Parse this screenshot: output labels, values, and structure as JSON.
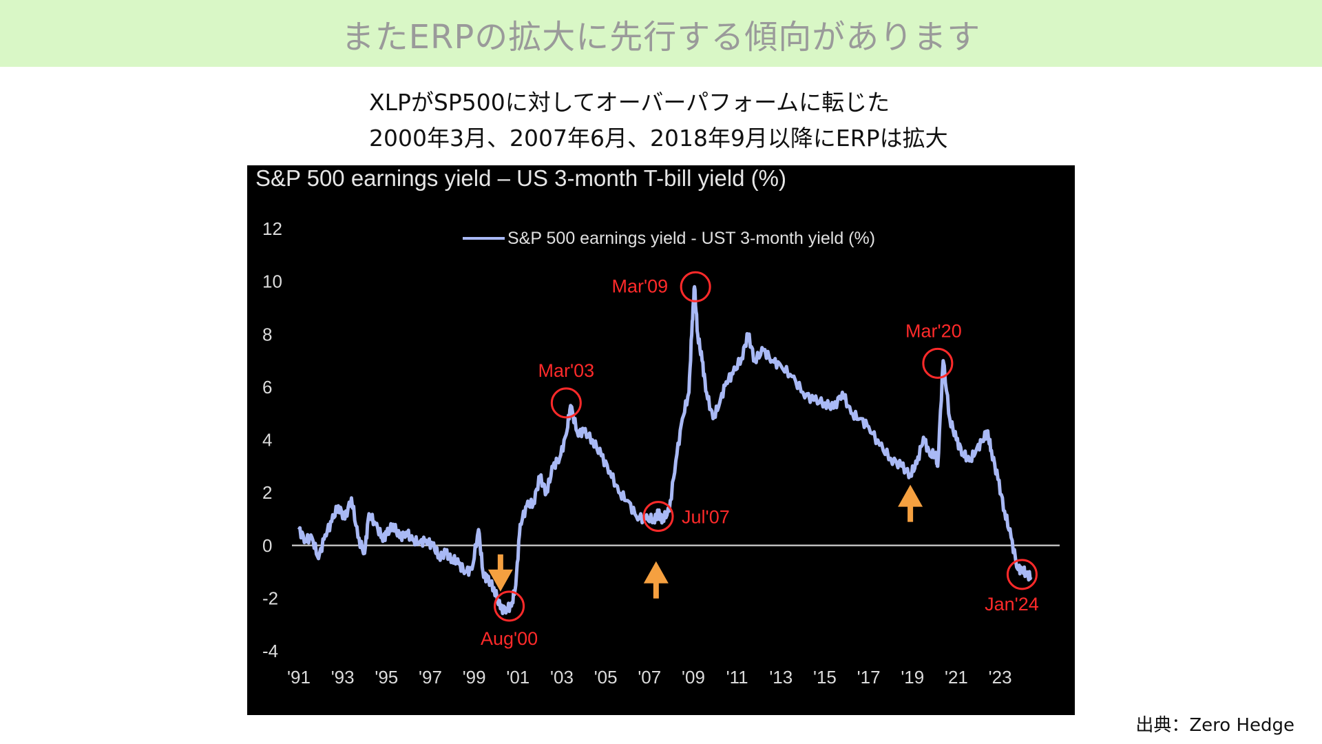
{
  "header": {
    "title": "またERPの拡大に先行する傾向があります"
  },
  "subtitle": {
    "line1": "XLPがSP500に対してオーバーパフォームに転じた",
    "line2": "2000年3月、2007年6月、2018年9月以降にERPは拡大"
  },
  "source": "出典：Zero Hedge",
  "colors": {
    "banner_bg": "#d9f7c6",
    "line": "#a9b9f5",
    "annotation": "#ff2a2a",
    "arrow": "#f5a040",
    "zero_line": "#bdbdbd"
  },
  "chart_data": {
    "type": "line",
    "title": "S&P 500 earnings yield – US 3-month T-bill yield (%)",
    "legend": "S&P 500 earnings yield - UST 3-month yield (%)",
    "legend_position": "top-center",
    "xlabel": "",
    "ylabel": "",
    "xlim": [
      1991,
      2025.4
    ],
    "ylim": [
      -4,
      12
    ],
    "yticks": [
      -4,
      -2,
      0,
      2,
      4,
      6,
      8,
      10,
      12
    ],
    "xtick_values": [
      1991,
      1993,
      1995,
      1997,
      1999,
      2001,
      2003,
      2005,
      2007,
      2009,
      2011,
      2013,
      2015,
      2017,
      2019,
      2021,
      2023
    ],
    "xtick_labels": [
      "'91",
      "'93",
      "'95",
      "'97",
      "'99",
      "'01",
      "'03",
      "'05",
      "'07",
      "'09",
      "'11",
      "'13",
      "'15",
      "'17",
      "'19",
      "'21",
      "'23"
    ],
    "grid": false,
    "zero_line": true,
    "series": [
      {
        "name": "S&P 500 earnings yield - UST 3-month yield (%)",
        "x": [
          1991.0,
          1991.3,
          1991.6,
          1991.9,
          1992.2,
          1992.5,
          1992.8,
          1993.1,
          1993.4,
          1993.7,
          1994.0,
          1994.2,
          1994.5,
          1994.8,
          1995.0,
          1995.3,
          1995.6,
          1995.9,
          1996.2,
          1996.5,
          1996.8,
          1997.1,
          1997.4,
          1997.7,
          1998.0,
          1998.3,
          1998.6,
          1998.9,
          1999.2,
          1999.4,
          1999.6,
          1999.9,
          2000.2,
          2000.5,
          2000.7,
          2000.9,
          2001.1,
          2001.4,
          2001.7,
          2002.0,
          2002.3,
          2002.6,
          2002.9,
          2003.2,
          2003.4,
          2003.7,
          2004.0,
          2004.4,
          2004.8,
          2005.2,
          2005.6,
          2006.0,
          2006.4,
          2006.8,
          2007.2,
          2007.4,
          2007.6,
          2007.9,
          2008.2,
          2008.5,
          2008.8,
          2008.95,
          2009.05,
          2009.2,
          2009.4,
          2009.6,
          2009.9,
          2010.2,
          2010.5,
          2010.8,
          2011.2,
          2011.5,
          2011.8,
          2012.2,
          2012.6,
          2013.0,
          2013.5,
          2014.0,
          2014.5,
          2015.0,
          2015.4,
          2015.8,
          2016.2,
          2016.6,
          2017.0,
          2017.5,
          2018.0,
          2018.5,
          2018.9,
          2019.2,
          2019.5,
          2019.8,
          2020.05,
          2020.15,
          2020.4,
          2020.7,
          2021.0,
          2021.3,
          2021.6,
          2021.9,
          2022.2,
          2022.4,
          2022.6,
          2022.9,
          2023.2,
          2023.5,
          2023.8,
          2024.0,
          2024.2,
          2024.4
        ],
        "y": [
          0.6,
          0.2,
          0.3,
          -0.5,
          0.4,
          0.9,
          1.5,
          1.0,
          1.8,
          0.3,
          -0.3,
          1.2,
          0.8,
          0.3,
          0.4,
          0.8,
          0.3,
          0.5,
          0.2,
          0.1,
          0.2,
          0.0,
          -0.4,
          -0.3,
          -0.5,
          -0.7,
          -1.0,
          -0.9,
          0.6,
          -1.0,
          -1.3,
          -1.6,
          -2.4,
          -2.4,
          -2.3,
          -1.5,
          0.8,
          1.5,
          1.6,
          2.6,
          2.0,
          3.0,
          3.3,
          4.2,
          5.3,
          4.3,
          4.3,
          4.0,
          3.4,
          2.8,
          2.0,
          1.7,
          1.1,
          1.0,
          1.0,
          1.2,
          1.0,
          1.3,
          3.2,
          4.8,
          5.8,
          8.5,
          9.8,
          8.0,
          7.0,
          5.8,
          4.8,
          5.4,
          6.2,
          6.5,
          7.1,
          8.0,
          7.0,
          7.4,
          7.0,
          6.8,
          6.4,
          5.8,
          5.5,
          5.4,
          5.2,
          5.8,
          5.0,
          4.8,
          4.5,
          3.8,
          3.3,
          3.0,
          2.7,
          3.1,
          4.1,
          3.4,
          3.5,
          3.0,
          7.0,
          4.8,
          4.0,
          3.5,
          3.2,
          3.6,
          4.0,
          4.3,
          3.6,
          2.5,
          1.3,
          0.3,
          -0.9,
          -0.9,
          -1.1,
          -1.2
        ]
      }
    ],
    "annotations": [
      {
        "label": "Aug'00",
        "x": 2000.6,
        "y": -2.3
      },
      {
        "label": "Mar'03",
        "x": 2003.2,
        "y": 5.4
      },
      {
        "label": "Jul'07",
        "x": 2007.4,
        "y": 1.1
      },
      {
        "label": "Mar'09",
        "x": 2009.1,
        "y": 9.8
      },
      {
        "label": "Mar'20",
        "x": 2020.15,
        "y": 6.9
      },
      {
        "label": "Jan'24",
        "x": 2024.0,
        "y": -1.1
      }
    ],
    "arrows": [
      {
        "direction": "down",
        "x": 2000.2,
        "y": -0.6
      },
      {
        "direction": "up",
        "x": 2007.3,
        "y": -0.6
      },
      {
        "direction": "up",
        "x": 2018.9,
        "y": 2.3
      }
    ]
  }
}
